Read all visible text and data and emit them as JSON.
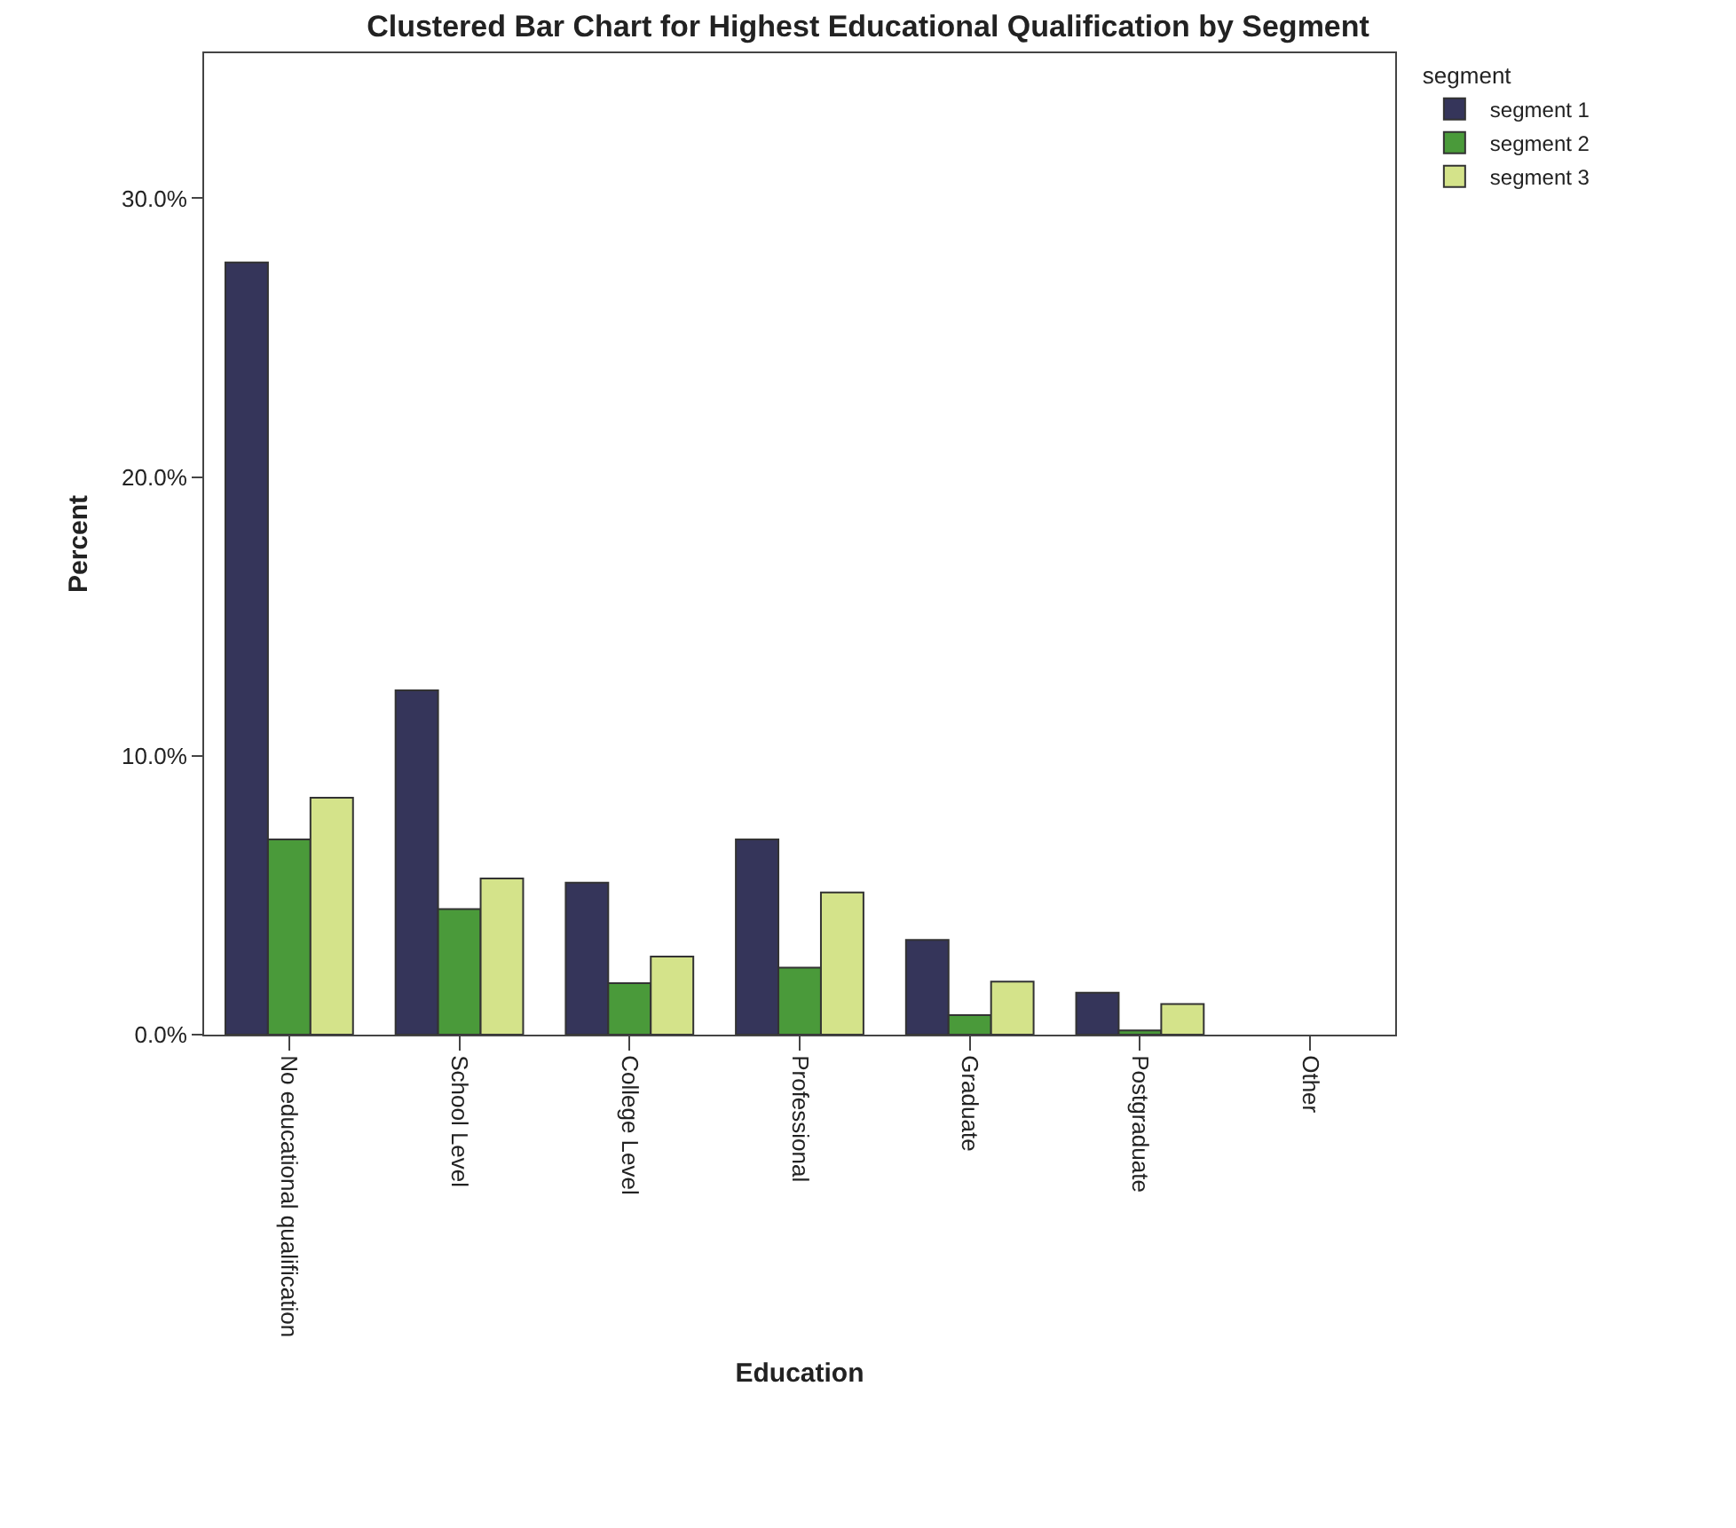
{
  "chart_data": {
    "type": "bar",
    "title": "Clustered Bar Chart for Highest Educational Qualification by Segment",
    "xlabel": "Education",
    "ylabel": "Percent",
    "legend_title": "segment",
    "categories": [
      "No educational qualification",
      "School Level",
      "College Level",
      "Professional",
      "Graduate",
      "Postgraduate",
      "Other"
    ],
    "series": [
      {
        "name": "segment 1",
        "color": "#35355a",
        "values": [
          27.7,
          12.35,
          5.45,
          7.0,
          3.4,
          1.5,
          0
        ]
      },
      {
        "name": "segment 2",
        "color": "#4a9a3a",
        "values": [
          7.0,
          4.5,
          1.85,
          2.4,
          0.7,
          0.15,
          0
        ]
      },
      {
        "name": "segment 3",
        "color": "#d4e38a",
        "values": [
          8.5,
          5.6,
          2.8,
          5.1,
          1.9,
          1.1,
          0
        ]
      }
    ],
    "ylim": [
      0,
      35.2
    ],
    "yticks": [
      {
        "value": 0,
        "label": "0.0%"
      },
      {
        "value": 10,
        "label": "10.0%"
      },
      {
        "value": 20,
        "label": "20.0%"
      },
      {
        "value": 30,
        "label": "30.0%"
      }
    ],
    "legend": "top right"
  }
}
